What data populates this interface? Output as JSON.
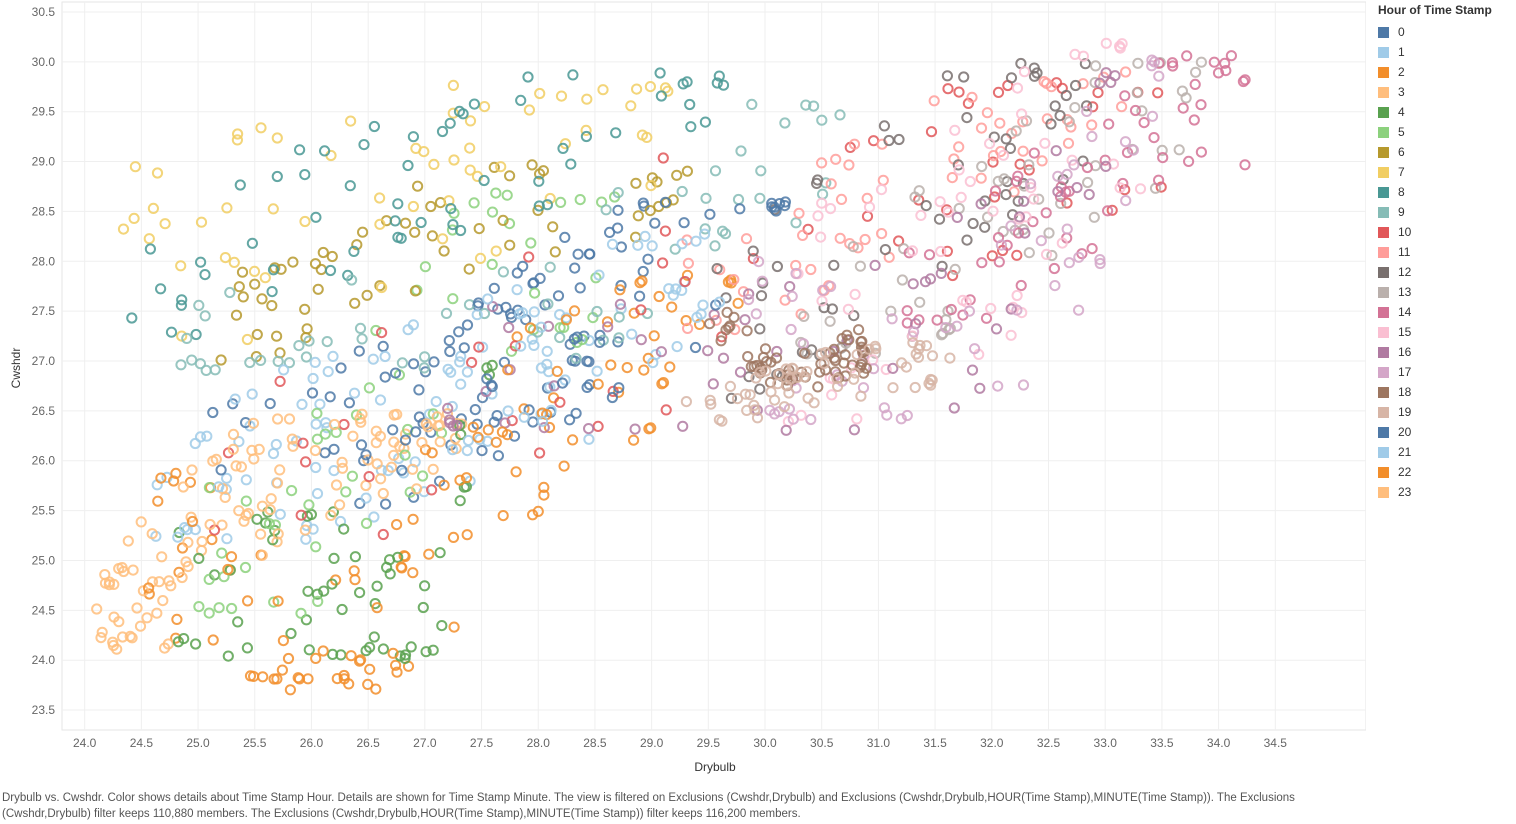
{
  "chart_data": {
    "type": "scatter",
    "xlabel": "Drybulb",
    "ylabel": "Cwshdr",
    "xlim": [
      23.8,
      35.3
    ],
    "ylim": [
      23.3,
      30.6
    ],
    "x_ticks": [
      "24.0",
      "24.5",
      "25.0",
      "25.5",
      "26.0",
      "26.5",
      "27.0",
      "27.5",
      "28.0",
      "28.5",
      "29.0",
      "29.5",
      "30.0",
      "30.5",
      "31.0",
      "31.5",
      "32.0",
      "32.5",
      "33.0",
      "33.5",
      "34.0",
      "34.5"
    ],
    "y_ticks": [
      "23.5",
      "24.0",
      "24.5",
      "25.0",
      "25.5",
      "26.0",
      "26.5",
      "27.0",
      "27.5",
      "28.0",
      "28.5",
      "29.0",
      "29.5",
      "30.0",
      "30.5"
    ],
    "grid": true,
    "marker": "open-circle",
    "legend": {
      "title": "Hour of Time Stamp",
      "placement": "right",
      "entries": [
        "0",
        "1",
        "2",
        "3",
        "4",
        "5",
        "6",
        "7",
        "8",
        "9",
        "10",
        "11",
        "12",
        "13",
        "14",
        "15",
        "16",
        "17",
        "18",
        "19",
        "20",
        "21",
        "22",
        "23"
      ]
    },
    "series": [
      {
        "name": "0",
        "color": "#4e79a7",
        "x_range": [
          26.4,
          29.3
        ],
        "y_range": [
          25.3,
          28.6
        ],
        "trend": [
          [
            26.5,
            25.9
          ],
          [
            27.6,
            26.9
          ],
          [
            28.5,
            27.5
          ],
          [
            29.2,
            28.4
          ]
        ]
      },
      {
        "name": "1",
        "color": "#a0cbe8",
        "x_range": [
          24.6,
          29.6
        ],
        "y_range": [
          25.2,
          27.8
        ],
        "trend": [
          [
            24.7,
            25.6
          ],
          [
            26.5,
            26.0
          ],
          [
            28.3,
            26.8
          ],
          [
            29.5,
            27.6
          ]
        ]
      },
      {
        "name": "2",
        "color": "#f28e2b",
        "x_range": [
          24.5,
          29.8
        ],
        "y_range": [
          23.8,
          27.9
        ],
        "trend": [
          [
            24.6,
            25.5
          ],
          [
            26.3,
            23.9
          ],
          [
            27.8,
            26.3
          ],
          [
            29.7,
            27.8
          ]
        ]
      },
      {
        "name": "3",
        "color": "#ffbe7d",
        "x_range": [
          24.2,
          27.4
        ],
        "y_range": [
          24.1,
          26.5
        ],
        "trend": [
          [
            24.3,
            24.3
          ],
          [
            25.3,
            25.5
          ],
          [
            27.3,
            26.4
          ]
        ]
      },
      {
        "name": "4",
        "color": "#59a14f",
        "x_range": [
          24.8,
          27.6
        ],
        "y_range": [
          24.0,
          27.0
        ],
        "trend": [
          [
            24.8,
            24.5
          ],
          [
            26.0,
            24.8
          ],
          [
            27.0,
            24.1
          ],
          [
            27.5,
            26.9
          ]
        ]
      },
      {
        "name": "5",
        "color": "#8cd17d",
        "x_range": [
          25.0,
          28.8
        ],
        "y_range": [
          24.4,
          28.7
        ],
        "trend": [
          [
            25.2,
            24.6
          ],
          [
            26.5,
            26.2
          ],
          [
            27.5,
            27.8
          ],
          [
            28.7,
            28.6
          ]
        ]
      },
      {
        "name": "6",
        "color": "#b6992d",
        "x_range": [
          25.2,
          29.5
        ],
        "y_range": [
          27.0,
          29.0
        ],
        "trend": [
          [
            25.3,
            27.4
          ],
          [
            26.8,
            28.2
          ],
          [
            28.0,
            28.6
          ],
          [
            29.4,
            28.9
          ]
        ]
      },
      {
        "name": "7",
        "color": "#f1ce63",
        "x_range": [
          24.3,
          29.3
        ],
        "y_range": [
          26.0,
          29.8
        ],
        "trend": [
          [
            24.3,
            28.2
          ],
          [
            25.8,
            28.3
          ],
          [
            27.5,
            29.0
          ],
          [
            29.2,
            29.7
          ]
        ]
      },
      {
        "name": "8",
        "color": "#499894",
        "x_range": [
          24.4,
          29.8
        ],
        "y_range": [
          27.2,
          29.9
        ],
        "trend": [
          [
            24.5,
            27.4
          ],
          [
            25.3,
            28.2
          ],
          [
            27.5,
            29.0
          ],
          [
            29.7,
            29.8
          ]
        ]
      },
      {
        "name": "9",
        "color": "#86bcb6",
        "x_range": [
          24.8,
          31.0
        ],
        "y_range": [
          26.9,
          29.6
        ],
        "trend": [
          [
            25.0,
            27.0
          ],
          [
            28.5,
            27.8
          ],
          [
            30.0,
            29.1
          ],
          [
            30.9,
            29.2
          ]
        ]
      },
      {
        "name": "10",
        "color": "#e15759",
        "x_range": [
          25.0,
          33.5
        ],
        "y_range": [
          25.2,
          29.8
        ],
        "trend": [
          [
            25.5,
            25.4
          ],
          [
            30.2,
            28.5
          ],
          [
            31.5,
            29.0
          ],
          [
            33.4,
            29.6
          ]
        ]
      },
      {
        "name": "11",
        "color": "#ff9d9a",
        "x_range": [
          29.3,
          33.2
        ],
        "y_range": [
          27.3,
          29.9
        ],
        "trend": [
          [
            29.4,
            27.6
          ],
          [
            31.0,
            28.6
          ],
          [
            32.0,
            29.3
          ],
          [
            33.1,
            29.8
          ]
        ]
      },
      {
        "name": "12",
        "color": "#79706e",
        "x_range": [
          29.5,
          33.0
        ],
        "y_range": [
          26.5,
          30.0
        ],
        "trend": [
          [
            29.5,
            27.0
          ],
          [
            31.0,
            28.4
          ],
          [
            32.0,
            29.3
          ],
          [
            32.9,
            29.9
          ]
        ]
      },
      {
        "name": "13",
        "color": "#bab0ac",
        "x_range": [
          30.3,
          33.9
        ],
        "y_range": [
          27.0,
          30.0
        ],
        "trend": [
          [
            30.4,
            27.3
          ],
          [
            31.8,
            28.2
          ],
          [
            33.0,
            29.3
          ],
          [
            33.8,
            29.7
          ]
        ]
      },
      {
        "name": "14",
        "color": "#d37295",
        "x_range": [
          31.2,
          34.3
        ],
        "y_range": [
          27.3,
          30.1
        ],
        "trend": [
          [
            31.3,
            27.5
          ],
          [
            32.5,
            28.5
          ],
          [
            33.5,
            29.5
          ],
          [
            34.2,
            29.4
          ]
        ]
      },
      {
        "name": "15",
        "color": "#fabfd2",
        "x_range": [
          30.2,
          33.5
        ],
        "y_range": [
          25.3,
          30.2
        ],
        "trend": [
          [
            30.3,
            27.4
          ],
          [
            31.8,
            28.0
          ],
          [
            32.8,
            29.6
          ],
          [
            33.4,
            30.1
          ]
        ]
      },
      {
        "name": "16",
        "color": "#b07aa1",
        "x_range": [
          27.2,
          33.1
        ],
        "y_range": [
          26.3,
          29.9
        ],
        "trend": [
          [
            27.3,
            26.6
          ],
          [
            30.5,
            26.8
          ],
          [
            31.8,
            27.5
          ],
          [
            33.0,
            29.8
          ]
        ]
      },
      {
        "name": "17",
        "color": "#d4a6c8",
        "x_range": [
          29.8,
          33.6
        ],
        "y_range": [
          26.4,
          30.1
        ],
        "trend": [
          [
            29.9,
            27.0
          ],
          [
            31.2,
            26.6
          ],
          [
            32.5,
            27.9
          ],
          [
            33.5,
            30.0
          ]
        ]
      },
      {
        "name": "18",
        "color": "#9d7660",
        "x_range": [
          29.5,
          30.9
        ],
        "y_range": [
          26.7,
          27.5
        ],
        "trend": [
          [
            29.6,
            27.4
          ],
          [
            30.2,
            26.8
          ],
          [
            30.8,
            27.1
          ]
        ]
      },
      {
        "name": "19",
        "color": "#d7b5a6",
        "x_range": [
          29.3,
          31.7
        ],
        "y_range": [
          26.3,
          27.2
        ],
        "trend": [
          [
            29.4,
            26.4
          ],
          [
            30.3,
            26.8
          ],
          [
            31.6,
            27.0
          ]
        ]
      },
      {
        "name": "20",
        "color": "#4e79a7",
        "x_range": [
          24.7,
          30.3
        ],
        "y_range": [
          25.4,
          28.6
        ],
        "trend": [
          [
            24.8,
            25.9
          ],
          [
            26.5,
            26.3
          ],
          [
            28.5,
            27.4
          ],
          [
            30.2,
            28.5
          ]
        ]
      },
      {
        "name": "21",
        "color": "#a0cbe8",
        "x_range": [
          24.8,
          29.6
        ],
        "y_range": [
          25.2,
          28.3
        ],
        "trend": [
          [
            24.9,
            25.7
          ],
          [
            26.8,
            26.5
          ],
          [
            28.0,
            27.0
          ],
          [
            29.5,
            28.2
          ]
        ]
      },
      {
        "name": "22",
        "color": "#f28e2b",
        "x_range": [
          24.5,
          29.2
        ],
        "y_range": [
          23.7,
          27.6
        ],
        "trend": [
          [
            24.6,
            25.6
          ],
          [
            26.3,
            23.8
          ],
          [
            27.9,
            26.5
          ],
          [
            29.1,
            27.5
          ]
        ]
      },
      {
        "name": "23",
        "color": "#ffbe7d",
        "x_range": [
          24.1,
          27.2
        ],
        "y_range": [
          24.1,
          26.5
        ],
        "trend": [
          [
            24.2,
            24.3
          ],
          [
            25.0,
            25.6
          ],
          [
            27.1,
            26.4
          ]
        ]
      }
    ]
  },
  "caption": "Drybulb vs. Cwshdr.  Color shows details about Time Stamp Hour.  Details are shown for Time Stamp Minute. The view is filtered on Exclusions (Cwshdr,Drybulb) and Exclusions (Cwshdr,Drybulb,HOUR(Time Stamp),MINUTE(Time Stamp)). The Exclusions (Cwshdr,Drybulb) filter keeps 110,880 members. The Exclusions (Cwshdr,Drybulb,HOUR(Time Stamp),MINUTE(Time Stamp)) filter keeps 116,200 members."
}
